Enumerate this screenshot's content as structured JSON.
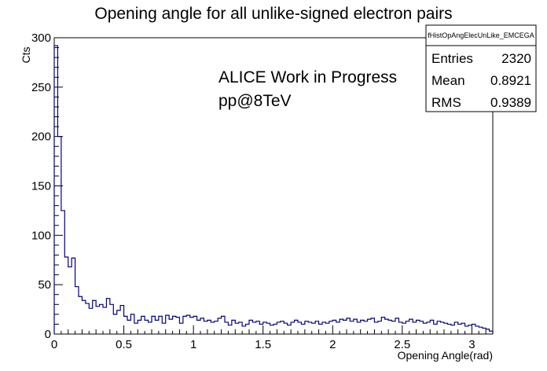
{
  "chart_data": {
    "type": "histogram",
    "title": "Opening angle for all unlike-signed electron pairs",
    "xlabel": "Opening Angle(rad)",
    "ylabel": "Cts",
    "xlim": [
      0,
      3.15
    ],
    "ylim": [
      0,
      300
    ],
    "x_ticks": [
      "0",
      "0.5",
      "1",
      "1.5",
      "2",
      "2.5",
      "3"
    ],
    "y_ticks": [
      "0",
      "50",
      "100",
      "150",
      "200",
      "250",
      "300"
    ],
    "grid": false,
    "bin_width": 0.025,
    "line_color": "#000080",
    "values": [
      292,
      200,
      125,
      78,
      68,
      77,
      48,
      38,
      34,
      31,
      26,
      34,
      28,
      30,
      27,
      36,
      30,
      20,
      24,
      29,
      18,
      14,
      20,
      11,
      14,
      18,
      14,
      12,
      18,
      14,
      18,
      11,
      19,
      15,
      18,
      17,
      11,
      18,
      19,
      17,
      18,
      14,
      16,
      13,
      14,
      12,
      13,
      16,
      18,
      12,
      9,
      14,
      11,
      12,
      8,
      10,
      14,
      12,
      13,
      10,
      12,
      11,
      9,
      10,
      12,
      13,
      11,
      9,
      12,
      14,
      12,
      10,
      13,
      12,
      11,
      13,
      10,
      12,
      11,
      13,
      14,
      12,
      15,
      14,
      16,
      13,
      15,
      12,
      14,
      13,
      15,
      16,
      12,
      13,
      17,
      15,
      14,
      13,
      16,
      12,
      11,
      13,
      15,
      12,
      14,
      13,
      11,
      12,
      14,
      10,
      13,
      12,
      11,
      10,
      9,
      12,
      10,
      11,
      8,
      9,
      10,
      8,
      7,
      6,
      5,
      3
    ]
  },
  "annotations": {
    "line1": "ALICE Work in Progress",
    "line2": "pp@8TeV"
  },
  "stats_box": {
    "name": "fHistOpAngElecUnLike_EMCEGA",
    "rows": [
      {
        "label": "Entries",
        "value": "2320"
      },
      {
        "label": "Mean",
        "value": "0.8921"
      },
      {
        "label": "RMS",
        "value": "0.9389"
      }
    ]
  }
}
